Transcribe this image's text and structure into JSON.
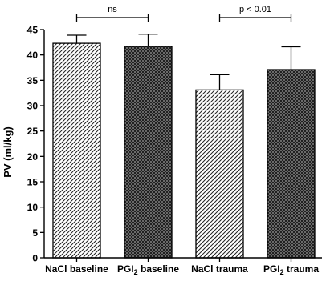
{
  "chart_data": {
    "type": "bar",
    "categories": [
      "NaCl baseline",
      "PGI2 baseline",
      "NaCl trauma",
      "PGI2 trauma"
    ],
    "category_labels": [
      {
        "main": "NaCl baseline",
        "sub": "",
        "after": ""
      },
      {
        "main": "PGI",
        "sub": "2",
        "after": " baseline"
      },
      {
        "main": "NaCl trauma",
        "sub": "",
        "after": ""
      },
      {
        "main": "PGI",
        "sub": "2",
        "after": " trauma"
      }
    ],
    "values": [
      42.3,
      41.7,
      33.1,
      37.1
    ],
    "errors": [
      1.6,
      2.4,
      3.0,
      4.5
    ],
    "patterns": [
      "light-diagonal-hatch",
      "dark-crosshatch",
      "light-diagonal-hatch",
      "dark-crosshatch"
    ],
    "ylabel": "PV (ml/kg)",
    "xlabel": "",
    "title": "",
    "ylim": [
      0,
      45
    ],
    "yticks": [
      0,
      5,
      10,
      15,
      20,
      25,
      30,
      35,
      40,
      45
    ],
    "grid": false,
    "annotations": [
      {
        "from": 0,
        "to": 1,
        "text": "ns"
      },
      {
        "from": 2,
        "to": 3,
        "text": "p < 0.01"
      }
    ]
  }
}
